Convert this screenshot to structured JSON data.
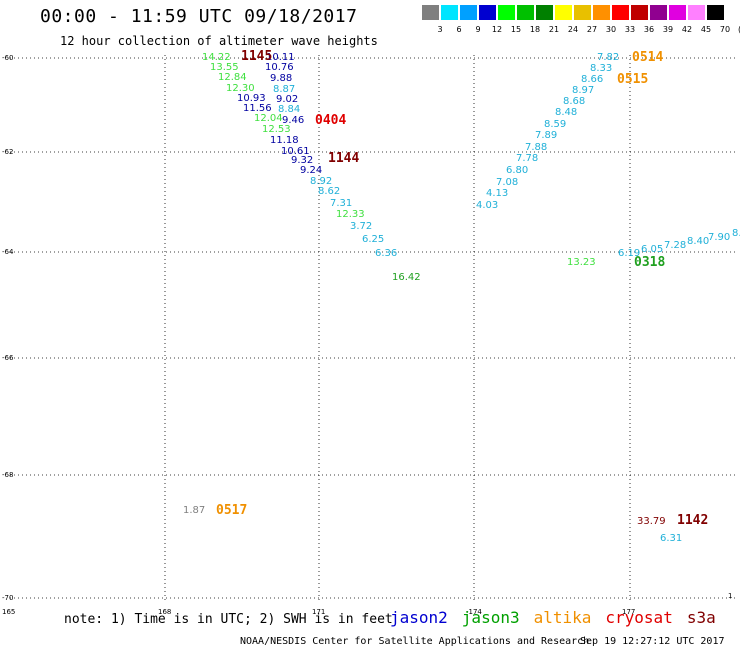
{
  "header": {
    "title": "00:00 - 11:59 UTC 09/18/2017",
    "subtitle": "12 hour collection of altimeter wave heights"
  },
  "color_scale": {
    "swatches": [
      "#7f7f7f",
      "#00e5ff",
      "#00a0ff",
      "#0000d0",
      "#00ff00",
      "#00c000",
      "#008000",
      "#ffff00",
      "#e8c000",
      "#ff9000",
      "#ff0000",
      "#c00000",
      "#900090",
      "#e000e0",
      "#ff80ff",
      "#000000"
    ],
    "labels": [
      "3",
      "6",
      "9",
      "12",
      "15",
      "18",
      "21",
      "24",
      "27",
      "30",
      "33",
      "36",
      "39",
      "42",
      "45",
      "70"
    ],
    "unit": "(ft)"
  },
  "map": {
    "lat_labels": [
      "-60",
      "-62",
      "-64",
      "-66",
      "-68",
      "-70"
    ],
    "lon_labels": [
      "165",
      "168",
      "171",
      "-174",
      "177",
      "1"
    ],
    "track_colors": {
      "gray": "#808080",
      "cyan": "#20b0d8",
      "navy": "#0000a0",
      "lightgreen": "#40e040",
      "green": "#20a020",
      "orange": "#f09000",
      "red": "#e00000",
      "darkred": "#800000"
    },
    "observations": [
      {
        "text": "14.22",
        "color": "lightgreen"
      },
      {
        "text": "13.55",
        "color": "lightgreen"
      },
      {
        "text": "12.84",
        "color": "lightgreen"
      },
      {
        "text": "12.30",
        "color": "lightgreen"
      },
      {
        "text": "10.93",
        "color": "navy"
      },
      {
        "text": "11.56",
        "color": "navy"
      },
      {
        "text": "12.04",
        "color": "lightgreen"
      },
      {
        "text": "12.53",
        "color": "lightgreen"
      },
      {
        "text": "11.18",
        "color": "navy"
      },
      {
        "text": "10.61",
        "color": "navy"
      },
      {
        "text": "9.32",
        "color": "navy"
      },
      {
        "text": "9.24",
        "color": "navy"
      },
      {
        "text": "8.92",
        "color": "cyan"
      },
      {
        "text": "8.62",
        "color": "cyan"
      },
      {
        "text": "7.31",
        "color": "cyan"
      },
      {
        "text": "12.33",
        "color": "lightgreen"
      },
      {
        "text": "3.72",
        "color": "cyan"
      },
      {
        "text": "6.25",
        "color": "cyan"
      },
      {
        "text": "6.36",
        "color": "cyan"
      },
      {
        "text": "16.42",
        "color": "green"
      },
      {
        "text": "10.11",
        "color": "navy"
      },
      {
        "text": "10.76",
        "color": "navy"
      },
      {
        "text": "9.88",
        "color": "navy"
      },
      {
        "text": "8.87",
        "color": "cyan"
      },
      {
        "text": "9.02",
        "color": "navy"
      },
      {
        "text": "8.84",
        "color": "cyan"
      },
      {
        "text": "9.46",
        "color": "navy"
      },
      {
        "text": "7.82",
        "color": "cyan"
      },
      {
        "text": "8.33",
        "color": "cyan"
      },
      {
        "text": "8.66",
        "color": "cyan"
      },
      {
        "text": "8.97",
        "color": "cyan"
      },
      {
        "text": "8.68",
        "color": "cyan"
      },
      {
        "text": "8.48",
        "color": "cyan"
      },
      {
        "text": "8.59",
        "color": "cyan"
      },
      {
        "text": "7.89",
        "color": "cyan"
      },
      {
        "text": "7.88",
        "color": "cyan"
      },
      {
        "text": "7.78",
        "color": "cyan"
      },
      {
        "text": "6.80",
        "color": "cyan"
      },
      {
        "text": "7.08",
        "color": "cyan"
      },
      {
        "text": "4.13",
        "color": "cyan"
      },
      {
        "text": "4.03",
        "color": "cyan"
      },
      {
        "text": "13.23",
        "color": "lightgreen"
      },
      {
        "text": "6.19",
        "color": "cyan"
      },
      {
        "text": "6.05",
        "color": "cyan"
      },
      {
        "text": "7.28",
        "color": "cyan"
      },
      {
        "text": "8.40",
        "color": "cyan"
      },
      {
        "text": "7.90",
        "color": "cyan"
      },
      {
        "text": "8.",
        "color": "cyan"
      },
      {
        "text": "1.87",
        "color": "gray"
      },
      {
        "text": "33.79",
        "color": "darkred"
      },
      {
        "text": "6.31",
        "color": "cyan"
      }
    ],
    "time_labels": [
      {
        "text": "1145",
        "color": "darkred"
      },
      {
        "text": "0404",
        "color": "red"
      },
      {
        "text": "1144",
        "color": "darkred"
      },
      {
        "text": "0514",
        "color": "orange"
      },
      {
        "text": "0515",
        "color": "orange"
      },
      {
        "text": "0318",
        "color": "green"
      },
      {
        "text": "0517",
        "color": "orange"
      },
      {
        "text": "1142",
        "color": "darkred"
      }
    ]
  },
  "note": "note: 1) Time is in UTC; 2) SWH is in feet",
  "legend": [
    {
      "name": "jason2",
      "color": "#0000d0"
    },
    {
      "name": "jason3",
      "color": "#00a000"
    },
    {
      "name": "altika",
      "color": "#f09000"
    },
    {
      "name": "cryosat",
      "color": "#e00000"
    },
    {
      "name": "s3a",
      "color": "#800000"
    }
  ],
  "footer": {
    "credit": "NOAA/NESDIS Center for Satellite Applications and Research",
    "generated": "Sep 19 12:27:12 UTC 2017"
  }
}
